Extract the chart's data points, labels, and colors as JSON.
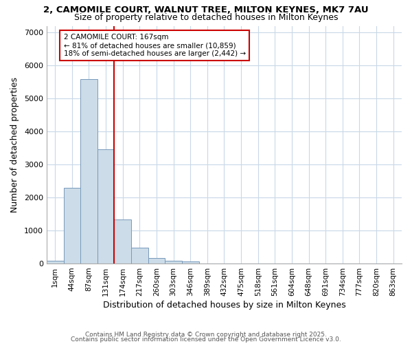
{
  "title1": "2, CAMOMILE COURT, WALNUT TREE, MILTON KEYNES, MK7 7AU",
  "title2": "Size of property relative to detached houses in Milton Keynes",
  "xlabel": "Distribution of detached houses by size in Milton Keynes",
  "ylabel": "Number of detached properties",
  "bar_labels": [
    "1sqm",
    "44sqm",
    "87sqm",
    "131sqm",
    "174sqm",
    "217sqm",
    "260sqm",
    "303sqm",
    "346sqm",
    "389sqm",
    "432sqm",
    "475sqm",
    "518sqm",
    "561sqm",
    "604sqm",
    "648sqm",
    "691sqm",
    "734sqm",
    "777sqm",
    "820sqm",
    "863sqm"
  ],
  "bar_heights": [
    75,
    2300,
    5580,
    3450,
    1340,
    480,
    165,
    80,
    60,
    0,
    0,
    0,
    0,
    0,
    0,
    0,
    0,
    0,
    0,
    0,
    0
  ],
  "bar_color": "#ccdce8",
  "bar_edgecolor": "#7799bb",
  "property_line_color": "#cc0000",
  "property_line_xindex": 3,
  "annotation_line1": "2 CAMOMILE COURT: 167sqm",
  "annotation_line2": "← 81% of detached houses are smaller (10,859)",
  "annotation_line3": "18% of semi-detached houses are larger (2,442) →",
  "annotation_box_edgecolor": "#cc0000",
  "annotation_bg": "#ffffff",
  "ylim": [
    0,
    7200
  ],
  "yticks": [
    0,
    1000,
    2000,
    3000,
    4000,
    5000,
    6000,
    7000
  ],
  "bg_color": "#ffffff",
  "grid_color": "#c8d8e8",
  "footer1": "Contains HM Land Registry data © Crown copyright and database right 2025.",
  "footer2": "Contains public sector information licensed under the Open Government Licence v3.0."
}
